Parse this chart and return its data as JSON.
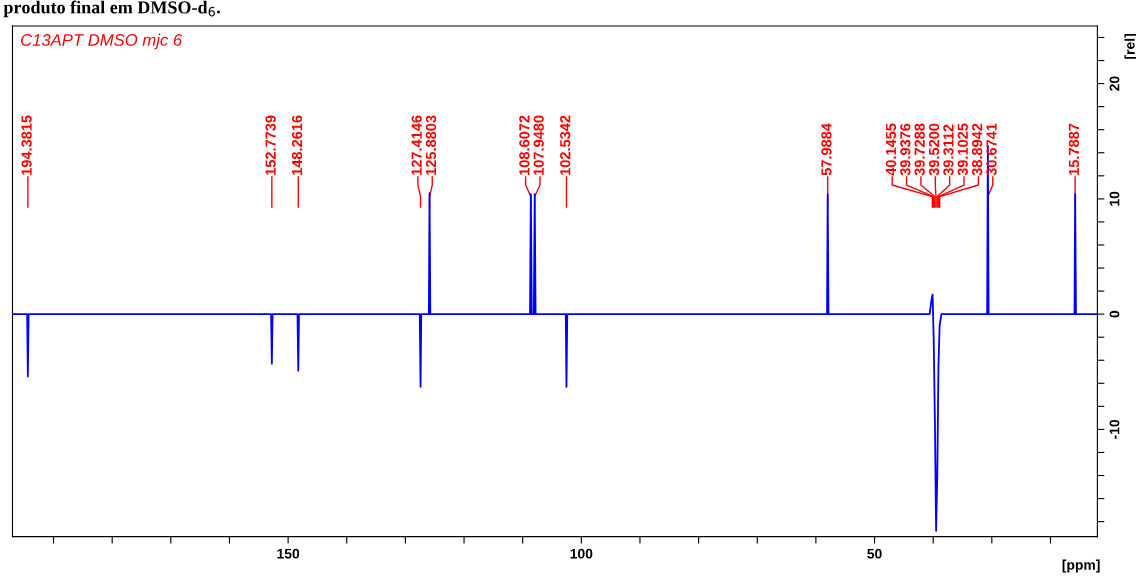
{
  "chart_data": {
    "type": "line",
    "title": "produto final em DMSO-d$_{6}$.",
    "xlabel": "[ppm]",
    "ylabel": "[rel]",
    "xlim": [
      197,
      12
    ],
    "ylim": [
      -19.3,
      25
    ],
    "xticks": [
      {
        "value": 190,
        "label": null
      },
      {
        "value": 180,
        "label": null
      },
      {
        "value": 170,
        "label": null
      },
      {
        "value": 160,
        "label": null
      },
      150,
      {
        "value": 140,
        "label": null
      },
      {
        "value": 130,
        "label": null
      },
      {
        "value": 120,
        "label": null
      },
      {
        "value": 110,
        "label": null
      },
      100,
      {
        "value": 90,
        "label": null
      },
      {
        "value": 80,
        "label": null
      },
      {
        "value": 70,
        "label": null
      },
      {
        "value": 60,
        "label": null
      },
      50,
      {
        "value": 40,
        "label": null
      },
      {
        "value": 30,
        "label": null
      },
      {
        "value": 20,
        "label": null
      }
    ],
    "yticks": [
      {
        "value": -18,
        "label": null
      },
      {
        "value": -16,
        "label": null
      },
      {
        "value": -14,
        "label": null
      },
      {
        "value": -12,
        "label": null
      },
      -10,
      {
        "value": -8,
        "label": null
      },
      {
        "value": -6,
        "label": null
      },
      {
        "value": -4,
        "label": null
      },
      {
        "value": -2,
        "label": null
      },
      0,
      {
        "value": 2,
        "label": null
      },
      {
        "value": 4,
        "label": null
      },
      {
        "value": 6,
        "label": null
      },
      {
        "value": 8,
        "label": null
      },
      10,
      {
        "value": 12,
        "label": null
      },
      {
        "value": 14,
        "label": null
      },
      {
        "value": 16,
        "label": null
      },
      {
        "value": 18,
        "label": null
      },
      20,
      {
        "value": 22,
        "label": null
      },
      {
        "value": 24,
        "label": null
      }
    ],
    "grid": false,
    "marker": "none",
    "line_style": "solid",
    "series": [
      {
        "color": "#0000ff",
        "x": [
          197,
          194.5,
          194.3815,
          194.25,
          152.9,
          152.7739,
          152.65,
          148.4,
          148.2616,
          148.15,
          127.55,
          127.4146,
          127.3,
          126.0,
          125.8803,
          125.75,
          108.75,
          108.6072,
          108.45,
          108.1,
          107.948,
          107.8,
          102.65,
          102.5342,
          102.4,
          58.1,
          57.9884,
          57.85,
          40.6,
          40.3,
          40.1,
          39.9,
          39.7,
          39.5,
          39.3,
          39.1,
          38.9,
          38.6,
          30.8,
          30.6741,
          30.55,
          15.9,
          15.7887,
          15.65,
          12
        ],
        "values": [
          0,
          0,
          -5.4,
          0,
          0,
          -4.3,
          0,
          0,
          -4.9,
          0,
          0,
          -6.3,
          0,
          0,
          10.5,
          0,
          0,
          10.4,
          0,
          0,
          10.4,
          0,
          0,
          -6.3,
          0,
          0,
          10.4,
          0,
          0,
          1.2,
          1.7,
          -2.5,
          -9.5,
          -18.8,
          -14,
          -4.5,
          -1,
          0,
          0,
          14.6,
          0,
          0,
          10.4,
          0,
          0
        ]
      }
    ],
    "annotations": [
      "C13APT DMSO mjc 6",
      {
        "text": "194.3815",
        "x": 194.3815
      },
      {
        "text": "152.7739",
        "x": 152.7739
      },
      {
        "text": "148.2616",
        "x": 148.2616
      },
      {
        "text": "127.4146",
        "x": 127.4146
      },
      {
        "text": "125.8803",
        "x": 125.8803
      },
      {
        "text": "108.6072",
        "x": 108.6072
      },
      {
        "text": "107.9480",
        "x": 107.948
      },
      {
        "text": "102.5342",
        "x": 102.5342
      },
      {
        "text": "57.9884",
        "x": 57.9884
      },
      {
        "text": "40.1455",
        "x": 40.1455
      },
      {
        "text": "39.9376",
        "x": 39.9376
      },
      {
        "text": "39.7288",
        "x": 39.7288
      },
      {
        "text": "39.5200",
        "x": 39.52
      },
      {
        "text": "39.3112",
        "x": 39.3112
      },
      {
        "text": "39.1025",
        "x": 39.1025
      },
      {
        "text": "38.8942",
        "x": 38.8942
      },
      {
        "text": "30.6741",
        "x": 30.6741
      },
      {
        "text": "15.7887",
        "x": 15.7887
      }
    ]
  }
}
